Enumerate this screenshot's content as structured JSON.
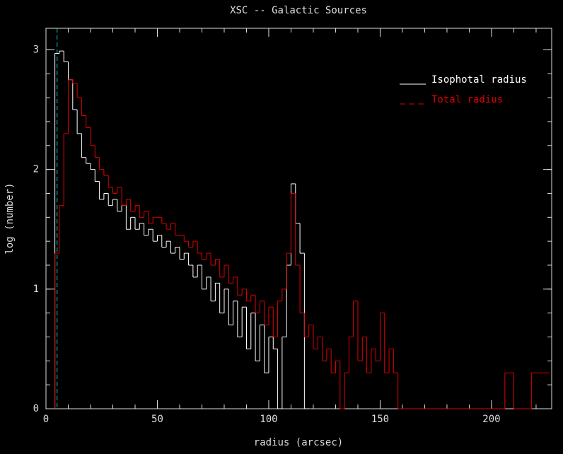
{
  "chart_data": {
    "type": "histogram",
    "title": "XSC -- Galactic Sources",
    "x_label": "radius (arcsec)",
    "y_label": "log (number)",
    "xlim": [
      0,
      227
    ],
    "ylim": [
      0,
      3.18
    ],
    "xticks": [
      0,
      50,
      100,
      150,
      200
    ],
    "yticks": [
      0,
      1,
      2,
      3
    ],
    "xminor": 10,
    "yminor": 0.2,
    "vline": 5,
    "vline_color": "#00c8c8",
    "legend": "upper right",
    "bins": [
      4,
      6,
      8,
      10,
      12,
      14,
      16,
      18,
      20,
      22,
      24,
      26,
      28,
      30,
      32,
      34,
      36,
      38,
      40,
      42,
      44,
      46,
      48,
      50,
      52,
      54,
      56,
      58,
      60,
      62,
      64,
      66,
      68,
      70,
      72,
      74,
      76,
      78,
      80,
      82,
      84,
      86,
      88,
      90,
      92,
      94,
      96,
      98,
      100,
      102,
      104,
      106,
      108,
      110,
      112,
      114,
      116,
      118,
      120,
      122,
      124,
      126,
      128,
      130,
      132,
      134,
      136,
      138,
      140,
      142,
      144,
      146,
      148,
      150,
      152,
      154,
      156,
      158,
      160,
      162,
      164,
      166,
      168,
      170,
      172,
      174,
      176,
      178,
      180,
      182,
      184,
      186,
      188,
      190,
      192,
      194,
      196,
      198,
      200,
      202,
      204,
      206,
      208,
      210,
      212,
      214,
      216,
      218,
      220,
      222,
      224,
      226
    ],
    "series": [
      {
        "name": "Isophotal radius",
        "color": "#ffffff",
        "dashed": false,
        "values": [
          2.97,
          2.99,
          2.9,
          2.75,
          2.5,
          2.3,
          2.1,
          2.05,
          2.0,
          1.9,
          1.75,
          1.8,
          1.7,
          1.75,
          1.65,
          1.7,
          1.5,
          1.6,
          1.5,
          1.55,
          1.45,
          1.5,
          1.4,
          1.45,
          1.35,
          1.4,
          1.3,
          1.35,
          1.25,
          1.3,
          1.2,
          1.1,
          1.2,
          1.0,
          1.1,
          0.9,
          1.05,
          0.8,
          1.0,
          0.7,
          0.9,
          0.6,
          0.85,
          0.5,
          0.8,
          0.4,
          0.7,
          0.3,
          0.6,
          0.5,
          0.0,
          0.6,
          1.2,
          1.88,
          1.55,
          1.3,
          0.0,
          null,
          null,
          null,
          null,
          null,
          null,
          null,
          null,
          null,
          null,
          null,
          null,
          null,
          null,
          null,
          null,
          null,
          null,
          null,
          null,
          null,
          null,
          null,
          null,
          null,
          null,
          null,
          null,
          null,
          null,
          null,
          null,
          null,
          null,
          null,
          null,
          null,
          null,
          null,
          null,
          null,
          null,
          null,
          null,
          null,
          null,
          null,
          null,
          null,
          null,
          null,
          null,
          null,
          null,
          null
        ]
      },
      {
        "name": "Total radius",
        "color": "#e00000",
        "dashed": true,
        "values": [
          1.3,
          1.7,
          2.3,
          2.75,
          2.72,
          2.6,
          2.45,
          2.35,
          2.2,
          2.1,
          2.0,
          1.95,
          1.85,
          1.8,
          1.85,
          1.7,
          1.75,
          1.65,
          1.7,
          1.6,
          1.65,
          1.55,
          1.6,
          1.6,
          1.55,
          1.5,
          1.55,
          1.45,
          1.45,
          1.4,
          1.35,
          1.4,
          1.3,
          1.25,
          1.3,
          1.2,
          1.25,
          1.1,
          1.2,
          1.05,
          1.1,
          0.95,
          1.0,
          0.9,
          0.95,
          0.8,
          0.9,
          0.7,
          0.85,
          0.6,
          0.9,
          1.0,
          1.3,
          1.8,
          1.2,
          0.8,
          0.6,
          0.7,
          0.5,
          0.6,
          0.4,
          0.5,
          0.3,
          0.4,
          0.0,
          0.3,
          0.6,
          0.9,
          0.4,
          0.6,
          0.3,
          0.5,
          0.4,
          0.8,
          0.3,
          0.5,
          0.3,
          0.0,
          0,
          0,
          0,
          0,
          0,
          0,
          0,
          0,
          0,
          0,
          0,
          0,
          0,
          0,
          0,
          0,
          0,
          0,
          0,
          0,
          0,
          0,
          0,
          0.3,
          0.3,
          0,
          0,
          0,
          0,
          0.3,
          0.3,
          0.3,
          0.3
        ]
      }
    ]
  }
}
